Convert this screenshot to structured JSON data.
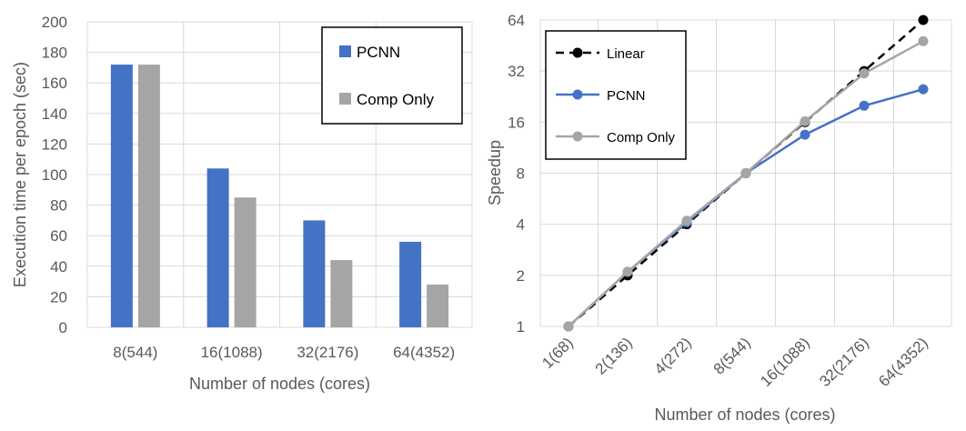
{
  "chart_data": [
    {
      "type": "bar",
      "categories": [
        "8(544)",
        "16(1088)",
        "32(2176)",
        "64(4352)"
      ],
      "series": [
        {
          "name": "PCNN",
          "values": [
            172,
            104,
            70,
            56
          ],
          "color": "#4472C4"
        },
        {
          "name": "Comp Only",
          "values": [
            172,
            85,
            44,
            28
          ],
          "color": "#A5A5A5"
        }
      ],
      "xlabel": "Number of nodes (cores)",
      "ylabel": "Execution time per epoch (sec)",
      "ylim": [
        0,
        200
      ],
      "yticks": [
        "0",
        "20",
        "40",
        "60",
        "80",
        "100",
        "120",
        "140",
        "160",
        "180",
        "200"
      ],
      "grid": true,
      "legend": "top-right"
    },
    {
      "type": "line",
      "categories": [
        "1(68)",
        "2(136)",
        "4(272)",
        "8(544)",
        "16(1088)",
        "32(2176)",
        "64(4352)"
      ],
      "series": [
        {
          "name": "Linear",
          "values": [
            1,
            2,
            4,
            8,
            16,
            32,
            64
          ],
          "color": "#000000",
          "dashed": true
        },
        {
          "name": "PCNN",
          "values": [
            1,
            2.1,
            4.1,
            8,
            13.5,
            20,
            25
          ],
          "color": "#4472C4",
          "dashed": false
        },
        {
          "name": "Comp Only",
          "values": [
            1,
            2.1,
            4.2,
            8,
            16.2,
            31,
            48
          ],
          "color": "#A5A5A5",
          "dashed": false
        }
      ],
      "xlabel": "Number of nodes (cores)",
      "ylabel": "Speedup",
      "yscale": "log2",
      "ylim": [
        1,
        64
      ],
      "yticks": [
        "1",
        "2",
        "4",
        "8",
        "16",
        "32",
        "64"
      ],
      "grid": true,
      "legend": "top-left"
    }
  ]
}
